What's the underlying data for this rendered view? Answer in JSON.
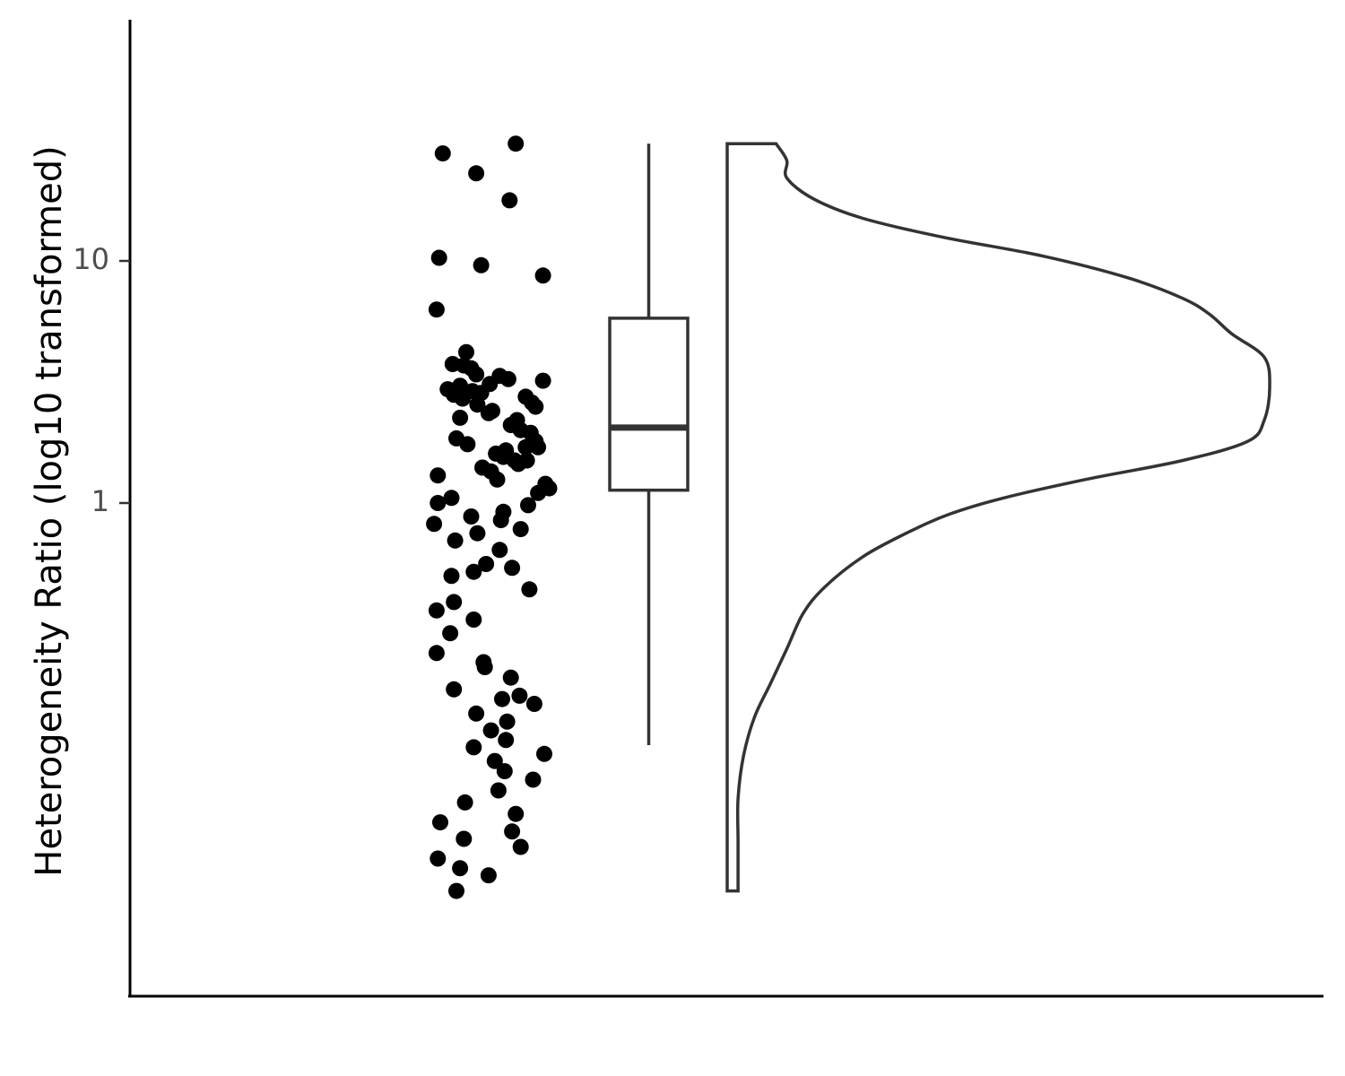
{
  "chart_data": {
    "type": "raincloud",
    "title": "",
    "xlabel": "",
    "ylabel": "Heterogeneity Ratio (log10 transformed)",
    "y_scale": "log10",
    "ylim": [
      0.026,
      36
    ],
    "yticks": [
      {
        "value": 1,
        "label": "1"
      },
      {
        "value": 10,
        "label": "10"
      }
    ],
    "grid": false,
    "points": [
      {
        "y": 30.5,
        "j": 0.69
      },
      {
        "y": 27.8,
        "j": 0.1
      },
      {
        "y": 23.0,
        "j": 0.37
      },
      {
        "y": 17.8,
        "j": 0.64
      },
      {
        "y": 10.3,
        "j": 0.07
      },
      {
        "y": 9.6,
        "j": 0.41
      },
      {
        "y": 8.7,
        "j": 0.91
      },
      {
        "y": 6.3,
        "j": 0.05
      },
      {
        "y": 4.2,
        "j": 0.29
      },
      {
        "y": 3.75,
        "j": 0.18
      },
      {
        "y": 3.7,
        "j": 0.27
      },
      {
        "y": 3.6,
        "j": 0.33
      },
      {
        "y": 3.4,
        "j": 0.37
      },
      {
        "y": 3.35,
        "j": 0.56
      },
      {
        "y": 3.2,
        "j": 0.91
      },
      {
        "y": 3.25,
        "j": 0.63
      },
      {
        "y": 3.1,
        "j": 0.48
      },
      {
        "y": 3.05,
        "j": 0.24
      },
      {
        "y": 2.95,
        "j": 0.14
      },
      {
        "y": 2.9,
        "j": 0.34
      },
      {
        "y": 2.85,
        "j": 0.41
      },
      {
        "y": 2.8,
        "j": 0.19
      },
      {
        "y": 2.75,
        "j": 0.77
      },
      {
        "y": 2.7,
        "j": 0.26
      },
      {
        "y": 2.6,
        "j": 0.82
      },
      {
        "y": 2.55,
        "j": 0.38
      },
      {
        "y": 2.5,
        "j": 0.85
      },
      {
        "y": 2.4,
        "j": 0.5
      },
      {
        "y": 2.35,
        "j": 0.47
      },
      {
        "y": 2.25,
        "j": 0.24
      },
      {
        "y": 2.2,
        "j": 0.7
      },
      {
        "y": 2.1,
        "j": 0.65
      },
      {
        "y": 2.0,
        "j": 0.73
      },
      {
        "y": 1.95,
        "j": 0.81
      },
      {
        "y": 1.85,
        "j": 0.21
      },
      {
        "y": 1.8,
        "j": 0.85
      },
      {
        "y": 1.75,
        "j": 0.3
      },
      {
        "y": 1.7,
        "j": 0.77
      },
      {
        "y": 1.7,
        "j": 0.87
      },
      {
        "y": 1.65,
        "j": 0.61
      },
      {
        "y": 1.6,
        "j": 0.53
      },
      {
        "y": 1.55,
        "j": 0.59
      },
      {
        "y": 1.5,
        "j": 0.68
      },
      {
        "y": 1.5,
        "j": 0.78
      },
      {
        "y": 1.45,
        "j": 0.71
      },
      {
        "y": 1.4,
        "j": 0.42
      },
      {
        "y": 1.35,
        "j": 0.49
      },
      {
        "y": 1.3,
        "j": 0.06
      },
      {
        "y": 1.25,
        "j": 0.54
      },
      {
        "y": 1.2,
        "j": 0.93
      },
      {
        "y": 1.15,
        "j": 0.96
      },
      {
        "y": 1.1,
        "j": 0.87
      },
      {
        "y": 1.05,
        "j": 0.17
      },
      {
        "y": 1.0,
        "j": 0.06
      },
      {
        "y": 0.98,
        "j": 0.79
      },
      {
        "y": 0.92,
        "j": 0.59
      },
      {
        "y": 0.88,
        "j": 0.33
      },
      {
        "y": 0.85,
        "j": 0.57
      },
      {
        "y": 0.82,
        "j": 0.03
      },
      {
        "y": 0.78,
        "j": 0.73
      },
      {
        "y": 0.75,
        "j": 0.38
      },
      {
        "y": 0.7,
        "j": 0.2
      },
      {
        "y": 0.64,
        "j": 0.56
      },
      {
        "y": 0.56,
        "j": 0.45
      },
      {
        "y": 0.54,
        "j": 0.66
      },
      {
        "y": 0.52,
        "j": 0.35
      },
      {
        "y": 0.5,
        "j": 0.17
      },
      {
        "y": 0.44,
        "j": 0.8
      },
      {
        "y": 0.39,
        "j": 0.19
      },
      {
        "y": 0.36,
        "j": 0.05
      },
      {
        "y": 0.33,
        "j": 0.35
      },
      {
        "y": 0.29,
        "j": 0.16
      },
      {
        "y": 0.24,
        "j": 0.05
      },
      {
        "y": 0.21,
        "j": 0.44
      },
      {
        "y": 0.22,
        "j": 0.43
      },
      {
        "y": 0.19,
        "j": 0.65
      },
      {
        "y": 0.17,
        "j": 0.19
      },
      {
        "y": 0.16,
        "j": 0.72
      },
      {
        "y": 0.155,
        "j": 0.58
      },
      {
        "y": 0.148,
        "j": 0.84
      },
      {
        "y": 0.135,
        "j": 0.37
      },
      {
        "y": 0.125,
        "j": 0.62
      },
      {
        "y": 0.115,
        "j": 0.49
      },
      {
        "y": 0.105,
        "j": 0.61
      },
      {
        "y": 0.098,
        "j": 0.35
      },
      {
        "y": 0.092,
        "j": 0.92
      },
      {
        "y": 0.086,
        "j": 0.52
      },
      {
        "y": 0.078,
        "j": 0.6
      },
      {
        "y": 0.072,
        "j": 0.83
      },
      {
        "y": 0.065,
        "j": 0.55
      },
      {
        "y": 0.058,
        "j": 0.28
      },
      {
        "y": 0.052,
        "j": 0.69
      },
      {
        "y": 0.048,
        "j": 0.08
      },
      {
        "y": 0.044,
        "j": 0.66
      },
      {
        "y": 0.041,
        "j": 0.27
      },
      {
        "y": 0.038,
        "j": 0.73
      },
      {
        "y": 0.034,
        "j": 0.06
      },
      {
        "y": 0.031,
        "j": 0.24
      },
      {
        "y": 0.029,
        "j": 0.47
      },
      {
        "y": 0.025,
        "j": 0.21
      }
    ],
    "boxplot": {
      "whisker_low": 0.1,
      "q1": 1.13,
      "median": 2.05,
      "q3": 5.8,
      "whisker_high": 30.5
    },
    "violin": {
      "max_width_fraction": 1.0,
      "profile": [
        {
          "y": 30.5,
          "w": 0.09
        },
        {
          "y": 26.0,
          "w": 0.11
        },
        {
          "y": 22.0,
          "w": 0.11
        },
        {
          "y": 18.0,
          "w": 0.16
        },
        {
          "y": 15.0,
          "w": 0.25
        },
        {
          "y": 12.5,
          "w": 0.4
        },
        {
          "y": 10.5,
          "w": 0.58
        },
        {
          "y": 8.5,
          "w": 0.74
        },
        {
          "y": 7.0,
          "w": 0.84
        },
        {
          "y": 6.0,
          "w": 0.89
        },
        {
          "y": 5.0,
          "w": 0.93
        },
        {
          "y": 4.0,
          "w": 0.99
        },
        {
          "y": 3.0,
          "w": 1.0
        },
        {
          "y": 2.2,
          "w": 0.99
        },
        {
          "y": 1.8,
          "w": 0.96
        },
        {
          "y": 1.5,
          "w": 0.84
        },
        {
          "y": 1.25,
          "w": 0.66
        },
        {
          "y": 1.05,
          "w": 0.51
        },
        {
          "y": 0.9,
          "w": 0.41
        },
        {
          "y": 0.75,
          "w": 0.33
        },
        {
          "y": 0.6,
          "w": 0.25
        },
        {
          "y": 0.45,
          "w": 0.18
        },
        {
          "y": 0.35,
          "w": 0.14
        },
        {
          "y": 0.25,
          "w": 0.11
        },
        {
          "y": 0.18,
          "w": 0.08
        },
        {
          "y": 0.13,
          "w": 0.05
        },
        {
          "y": 0.09,
          "w": 0.03
        },
        {
          "y": 0.06,
          "w": 0.02
        },
        {
          "y": 0.04,
          "w": 0.02
        },
        {
          "y": 0.025,
          "w": 0.02
        }
      ]
    },
    "colors": {
      "points": "#000000",
      "box_stroke": "#333333",
      "violin_stroke": "#333333",
      "axis": "#000000",
      "tick_label": "#4d4d4d"
    }
  }
}
